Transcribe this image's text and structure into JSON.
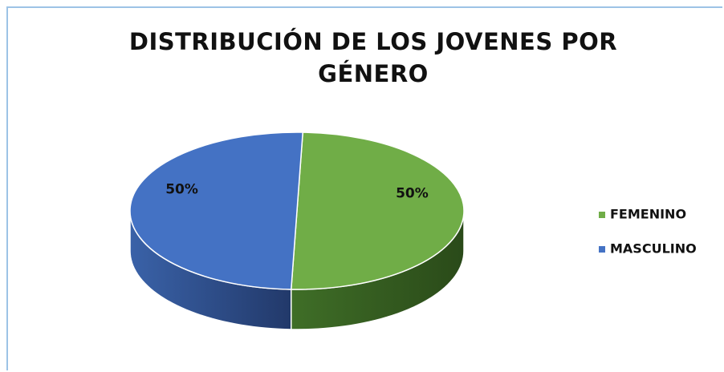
{
  "chart_data": {
    "type": "pie3d",
    "title": "DISTRIBUCIÓN DE LOS JOVENES POR GÉNERO",
    "categories": [
      "FEMENINO",
      "MASCULINO"
    ],
    "values": [
      50,
      50
    ],
    "value_labels": [
      "50%",
      "50%"
    ],
    "colors": [
      "#70ad47",
      "#4472c4"
    ],
    "legend": "right"
  }
}
